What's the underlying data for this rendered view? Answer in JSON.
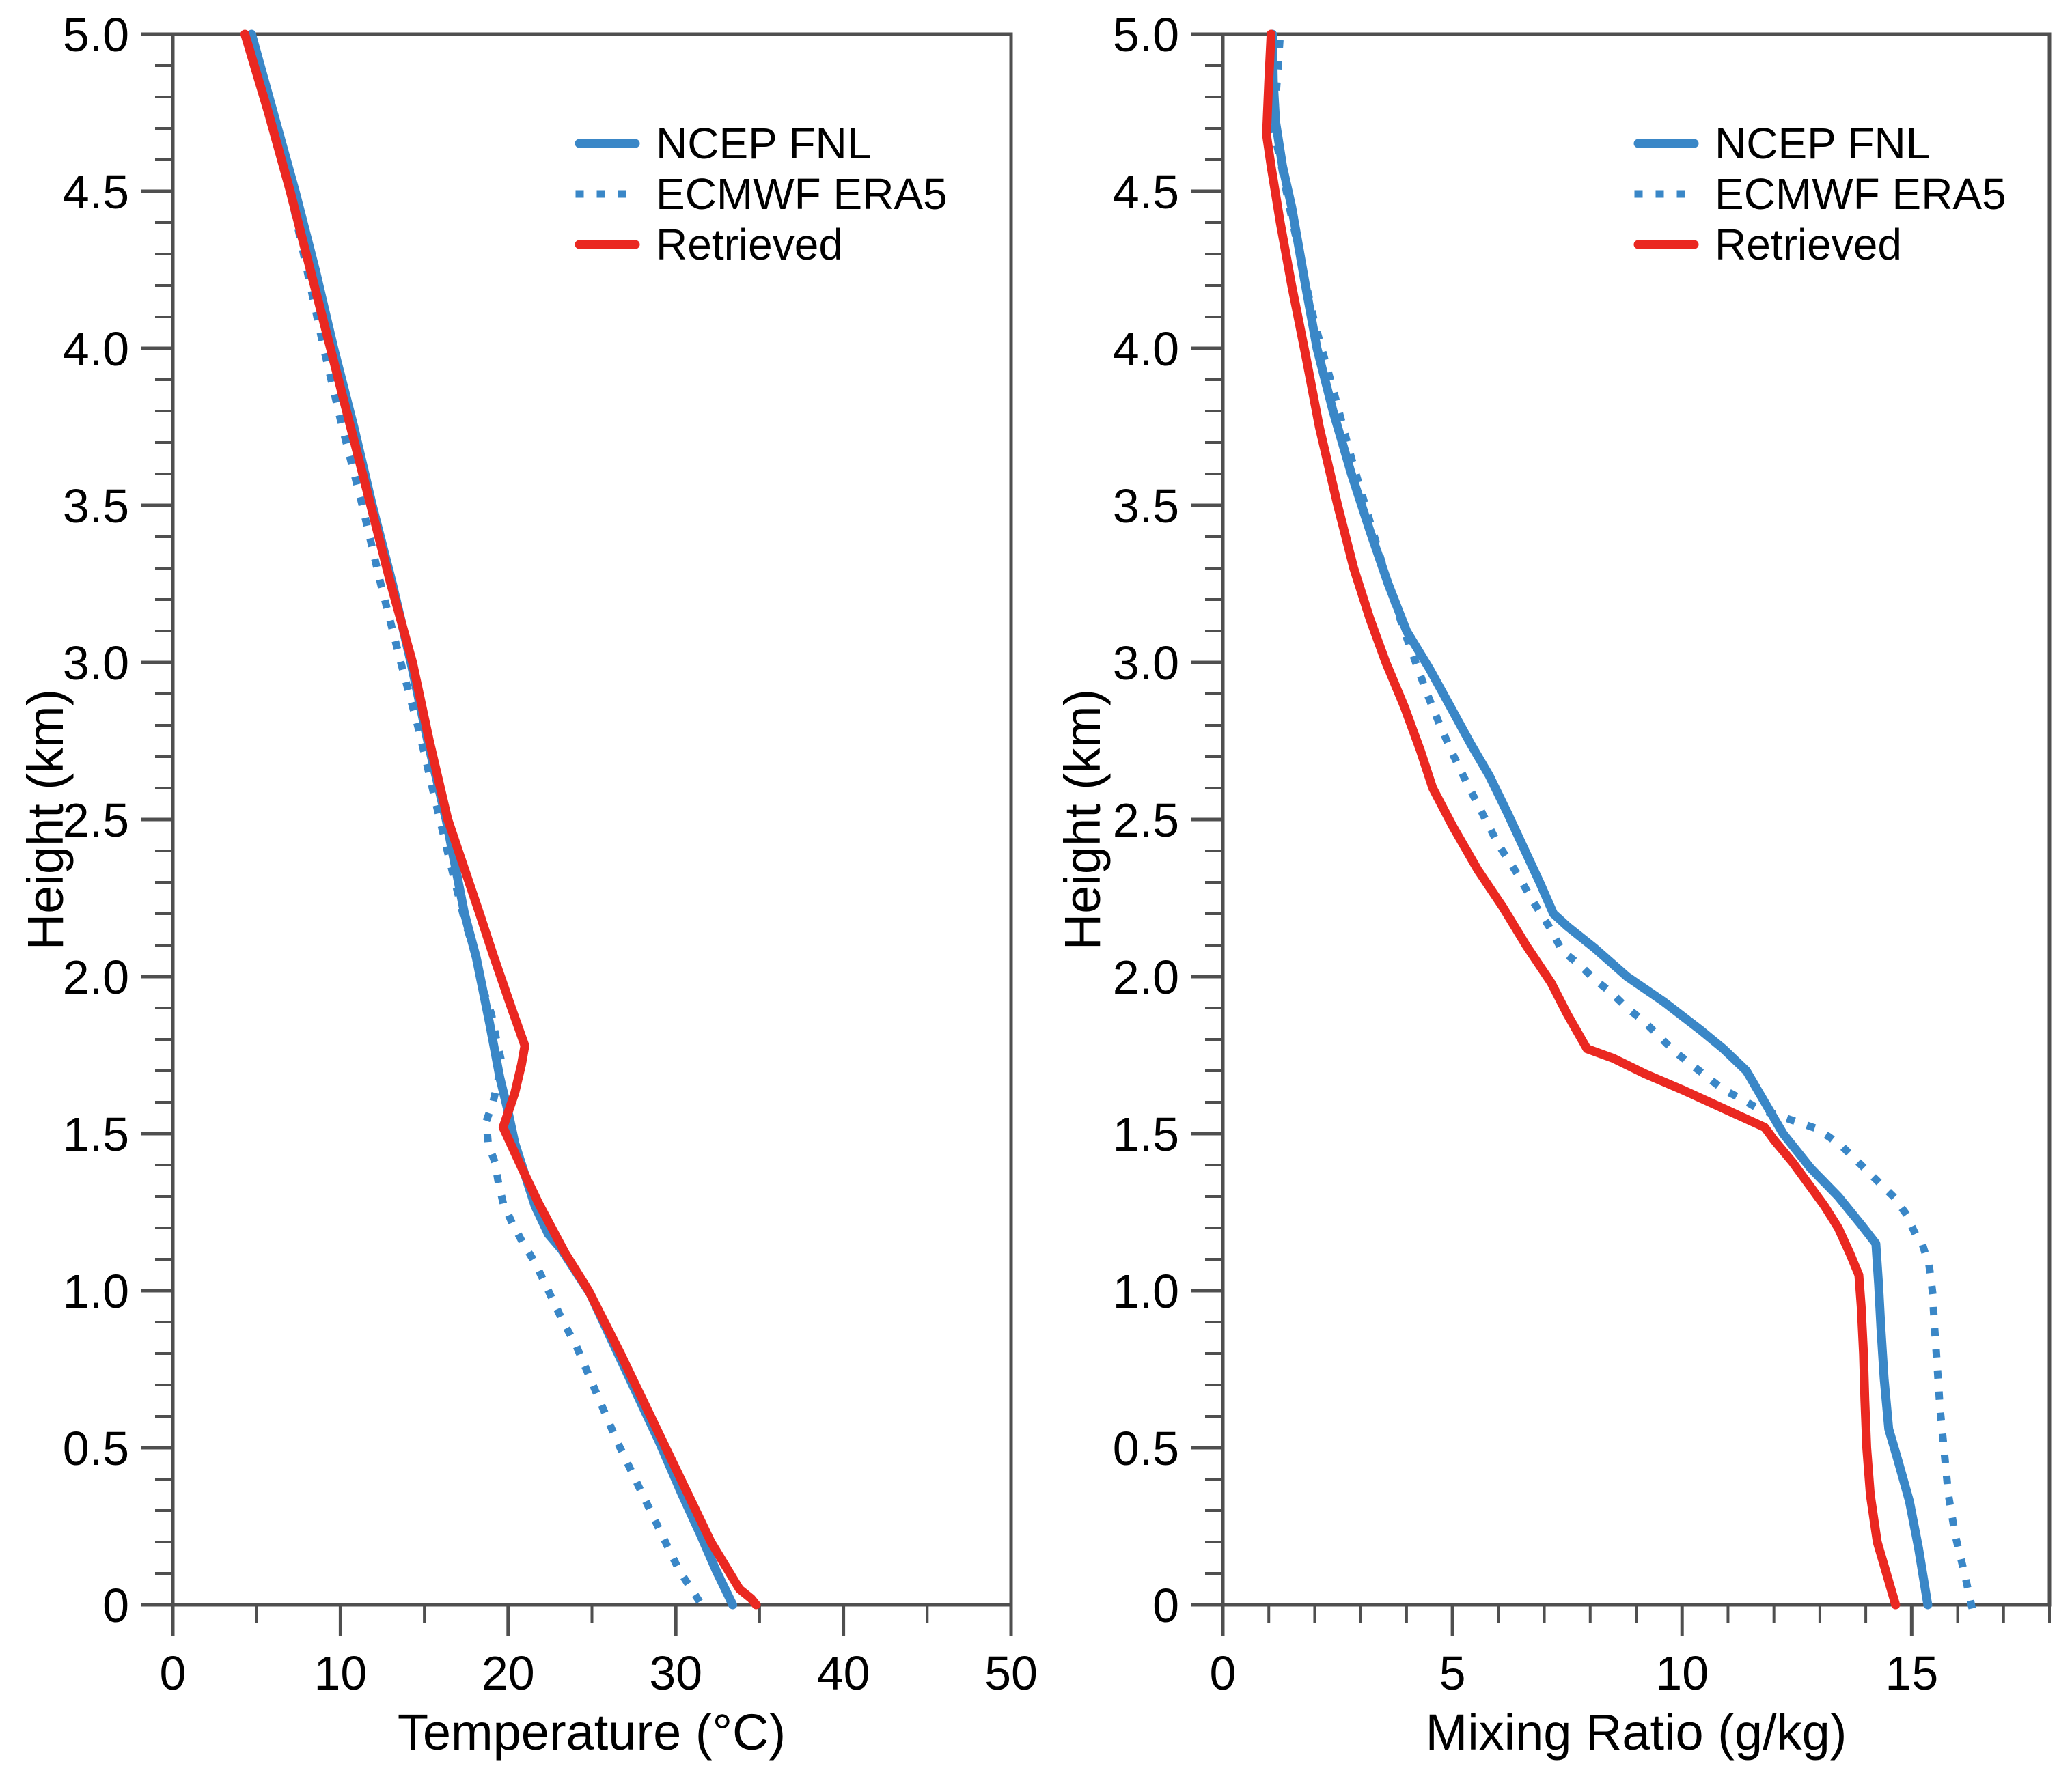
{
  "figure": {
    "background": "#ffffff",
    "axis_color": "#4F4F4F",
    "text_color": "#000000"
  },
  "legend": {
    "items": [
      {
        "label": "NCEP FNL",
        "color": "#3A87C7",
        "line_style": "solid"
      },
      {
        "label": "ECMWF ERA5",
        "color": "#3A87C7",
        "line_style": "dotted"
      },
      {
        "label": "Retrieved",
        "color": "#EA2821",
        "line_style": "solid"
      }
    ]
  },
  "chart_data": [
    {
      "type": "line",
      "title": "",
      "xlabel": "Temperature (°C)",
      "ylabel": "Height (km)",
      "xlim": [
        0,
        50
      ],
      "ylim": [
        0,
        5
      ],
      "grid": "off",
      "legend_position": "upper right",
      "x_major_ticks": [
        0,
        10,
        20,
        30,
        40,
        50
      ],
      "x_tick_labels": [
        "0",
        "10",
        "20",
        "30",
        "40",
        "50"
      ],
      "x_minor_step": 5,
      "y_major_ticks": [
        0,
        0.5,
        1.0,
        1.5,
        2.0,
        2.5,
        3.0,
        3.5,
        4.0,
        4.5,
        5.0
      ],
      "y_tick_labels": [
        "0",
        "0.5",
        "1.0",
        "1.5",
        "2.0",
        "2.5",
        "3.0",
        "3.5",
        "4.0",
        "4.5",
        "5.0"
      ],
      "y_minor_step": 0.1,
      "series": [
        {
          "name": "NCEP FNL",
          "color": "#3A87C7",
          "line_style": "solid",
          "points_format": "[temperature_C, height_km]",
          "points": [
            [
              33.4,
              0
            ],
            [
              32.4,
              0.11
            ],
            [
              31.5,
              0.22
            ],
            [
              30.3,
              0.36
            ],
            [
              29.0,
              0.52
            ],
            [
              27.6,
              0.68
            ],
            [
              26.2,
              0.84
            ],
            [
              24.9,
              0.99
            ],
            [
              23.2,
              1.13
            ],
            [
              22.4,
              1.18
            ],
            [
              21.6,
              1.27
            ],
            [
              21.0,
              1.37
            ],
            [
              20.4,
              1.47
            ],
            [
              20.0,
              1.57
            ],
            [
              19.5,
              1.68
            ],
            [
              18.9,
              1.85
            ],
            [
              18.1,
              2.06
            ],
            [
              17.4,
              2.2
            ],
            [
              16.3,
              2.5
            ],
            [
              15.2,
              2.75
            ],
            [
              14.2,
              3.0
            ],
            [
              13.1,
              3.25
            ],
            [
              11.9,
              3.5
            ],
            [
              10.8,
              3.75
            ],
            [
              9.6,
              4.0
            ],
            [
              8.5,
              4.25
            ],
            [
              7.3,
              4.5
            ],
            [
              6.0,
              4.75
            ],
            [
              4.7,
              5.0
            ]
          ]
        },
        {
          "name": "ECMWF ERA5",
          "color": "#3A87C7",
          "line_style": "dotted",
          "points_format": "[temperature_C, height_km]",
          "points": [
            [
              31.3,
              0.02
            ],
            [
              30.2,
              0.11
            ],
            [
              29.2,
              0.22
            ],
            [
              28.3,
              0.32
            ],
            [
              27.4,
              0.42
            ],
            [
              26.5,
              0.52
            ],
            [
              25.7,
              0.62
            ],
            [
              24.9,
              0.72
            ],
            [
              24.1,
              0.82
            ],
            [
              23.2,
              0.91
            ],
            [
              22.4,
              1.0
            ],
            [
              21.6,
              1.09
            ],
            [
              20.9,
              1.15
            ],
            [
              20.2,
              1.22
            ],
            [
              19.7,
              1.28
            ],
            [
              19.4,
              1.35
            ],
            [
              19.2,
              1.41
            ],
            [
              18.8,
              1.47
            ],
            [
              18.7,
              1.54
            ],
            [
              19.1,
              1.6
            ],
            [
              19.4,
              1.67
            ],
            [
              19.6,
              1.73
            ],
            [
              19.3,
              1.8
            ],
            [
              19.0,
              1.88
            ],
            [
              18.5,
              1.96
            ],
            [
              18.1,
              2.06
            ],
            [
              17.4,
              2.18
            ],
            [
              16.6,
              2.35
            ],
            [
              15.7,
              2.55
            ],
            [
              14.7,
              2.78
            ],
            [
              13.6,
              3.0
            ],
            [
              12.4,
              3.25
            ],
            [
              11.3,
              3.5
            ],
            [
              10.1,
              3.75
            ],
            [
              9.0,
              4.0
            ],
            [
              7.8,
              4.3
            ],
            [
              6.6,
              4.6
            ],
            [
              5.5,
              4.82
            ],
            [
              4.6,
              4.95
            ],
            [
              4.0,
              5.0
            ]
          ]
        },
        {
          "name": "Retrieved",
          "color": "#EA2821",
          "line_style": "solid",
          "points_format": "[temperature_C, height_km]",
          "points": [
            [
              34.8,
              0
            ],
            [
              34.5,
              0.02
            ],
            [
              33.8,
              0.05
            ],
            [
              32.1,
              0.2
            ],
            [
              30.3,
              0.4
            ],
            [
              28.5,
              0.6
            ],
            [
              26.7,
              0.8
            ],
            [
              24.8,
              1.0
            ],
            [
              23.4,
              1.12
            ],
            [
              22.6,
              1.2
            ],
            [
              21.8,
              1.28
            ],
            [
              21.0,
              1.37
            ],
            [
              20.3,
              1.45
            ],
            [
              19.7,
              1.52
            ],
            [
              20.4,
              1.63
            ],
            [
              20.8,
              1.72
            ],
            [
              21.0,
              1.78
            ],
            [
              20.2,
              1.9
            ],
            [
              19.1,
              2.07
            ],
            [
              18.3,
              2.2
            ],
            [
              16.4,
              2.5
            ],
            [
              15.3,
              2.75
            ],
            [
              14.3,
              3.0
            ],
            [
              13.0,
              3.25
            ],
            [
              11.8,
              3.5
            ],
            [
              10.6,
              3.75
            ],
            [
              9.4,
              4.0
            ],
            [
              8.2,
              4.25
            ],
            [
              7.0,
              4.5
            ],
            [
              5.7,
              4.75
            ],
            [
              4.3,
              5.0
            ]
          ]
        }
      ]
    },
    {
      "type": "line",
      "title": "",
      "xlabel": "Mixing Ratio (g/kg)",
      "ylabel": "Height (km)",
      "xlim": [
        0,
        18
      ],
      "ylim": [
        0,
        5
      ],
      "grid": "off",
      "legend_position": "upper right",
      "x_major_ticks": [
        0,
        5,
        10,
        15
      ],
      "x_tick_labels": [
        "0",
        "5",
        "10",
        "15"
      ],
      "x_minor_step": 1,
      "y_major_ticks": [
        0,
        0.5,
        1.0,
        1.5,
        2.0,
        2.5,
        3.0,
        3.5,
        4.0,
        4.5,
        5.0
      ],
      "y_tick_labels": [
        "0",
        "0.5",
        "1.0",
        "1.5",
        "2.0",
        "2.5",
        "3.0",
        "3.5",
        "4.0",
        "4.5",
        "5.0"
      ],
      "y_minor_step": 0.1,
      "series": [
        {
          "name": "NCEP FNL",
          "color": "#3A87C7",
          "line_style": "solid",
          "points_format": "[mixing_ratio_g_per_kg, height_km]",
          "points": [
            [
              15.35,
              0
            ],
            [
              15.15,
              0.18
            ],
            [
              14.95,
              0.33
            ],
            [
              14.7,
              0.46
            ],
            [
              14.5,
              0.56
            ],
            [
              14.4,
              0.72
            ],
            [
              14.33,
              0.88
            ],
            [
              14.28,
              1.02
            ],
            [
              14.22,
              1.15
            ],
            [
              13.9,
              1.21
            ],
            [
              13.4,
              1.3
            ],
            [
              12.8,
              1.39
            ],
            [
              12.2,
              1.5
            ],
            [
              11.8,
              1.6
            ],
            [
              11.4,
              1.7
            ],
            [
              10.9,
              1.77
            ],
            [
              10.4,
              1.83
            ],
            [
              9.6,
              1.92
            ],
            [
              8.8,
              2.0
            ],
            [
              8.1,
              2.09
            ],
            [
              7.5,
              2.16
            ],
            [
              7.2,
              2.2
            ],
            [
              6.9,
              2.3
            ],
            [
              6.55,
              2.41
            ],
            [
              6.2,
              2.52
            ],
            [
              5.8,
              2.64
            ],
            [
              5.4,
              2.74
            ],
            [
              4.95,
              2.86
            ],
            [
              4.5,
              2.98
            ],
            [
              4.0,
              3.1
            ],
            [
              3.6,
              3.25
            ],
            [
              3.2,
              3.42
            ],
            [
              2.8,
              3.6
            ],
            [
              2.4,
              3.8
            ],
            [
              2.05,
              4.0
            ],
            [
              1.8,
              4.2
            ],
            [
              1.5,
              4.45
            ],
            [
              1.3,
              4.58
            ],
            [
              1.15,
              4.72
            ],
            [
              1.1,
              4.85
            ],
            [
              1.08,
              5.0
            ]
          ]
        },
        {
          "name": "ECMWF ERA5",
          "color": "#3A87C7",
          "line_style": "dotted",
          "points_format": "[mixing_ratio_g_per_kg, height_km]",
          "points": [
            [
              16.3,
              0
            ],
            [
              16.15,
              0.1
            ],
            [
              15.95,
              0.22
            ],
            [
              15.8,
              0.35
            ],
            [
              15.7,
              0.5
            ],
            [
              15.62,
              0.62
            ],
            [
              15.56,
              0.75
            ],
            [
              15.5,
              0.88
            ],
            [
              15.45,
              1.0
            ],
            [
              15.38,
              1.08
            ],
            [
              15.25,
              1.14
            ],
            [
              15.05,
              1.19
            ],
            [
              14.85,
              1.25
            ],
            [
              14.6,
              1.3
            ],
            [
              14.25,
              1.35
            ],
            [
              13.9,
              1.4
            ],
            [
              13.55,
              1.45
            ],
            [
              13.2,
              1.49
            ],
            [
              12.85,
              1.52
            ],
            [
              12.45,
              1.54
            ],
            [
              12.05,
              1.56
            ],
            [
              11.65,
              1.58
            ],
            [
              11.3,
              1.61
            ],
            [
              10.9,
              1.64
            ],
            [
              10.55,
              1.68
            ],
            [
              10.2,
              1.72
            ],
            [
              9.85,
              1.76
            ],
            [
              9.5,
              1.81
            ],
            [
              9.15,
              1.86
            ],
            [
              8.8,
              1.9
            ],
            [
              8.45,
              1.95
            ],
            [
              8.1,
              1.99
            ],
            [
              7.75,
              2.04
            ],
            [
              7.4,
              2.08
            ],
            [
              7.1,
              2.16
            ],
            [
              6.75,
              2.24
            ],
            [
              6.4,
              2.33
            ],
            [
              6.0,
              2.42
            ],
            [
              5.65,
              2.52
            ],
            [
              5.3,
              2.62
            ],
            [
              5.0,
              2.71
            ],
            [
              4.7,
              2.81
            ],
            [
              4.45,
              2.9
            ],
            [
              4.2,
              3.0
            ],
            [
              3.95,
              3.1
            ],
            [
              3.6,
              3.25
            ],
            [
              3.2,
              3.45
            ],
            [
              2.8,
              3.65
            ],
            [
              2.4,
              3.87
            ],
            [
              2.0,
              4.08
            ],
            [
              1.7,
              4.28
            ],
            [
              1.45,
              4.45
            ],
            [
              1.25,
              4.6
            ],
            [
              1.1,
              4.7
            ],
            [
              1.18,
              4.85
            ],
            [
              1.25,
              5.0
            ]
          ]
        },
        {
          "name": "Retrieved",
          "color": "#EA2821",
          "line_style": "solid",
          "points_format": "[mixing_ratio_g_per_kg, height_km]",
          "points": [
            [
              14.65,
              0
            ],
            [
              14.45,
              0.1
            ],
            [
              14.25,
              0.2
            ],
            [
              14.1,
              0.35
            ],
            [
              14.02,
              0.5
            ],
            [
              13.98,
              0.65
            ],
            [
              13.95,
              0.8
            ],
            [
              13.9,
              0.95
            ],
            [
              13.85,
              1.05
            ],
            [
              13.65,
              1.12
            ],
            [
              13.4,
              1.2
            ],
            [
              13.1,
              1.27
            ],
            [
              12.75,
              1.34
            ],
            [
              12.4,
              1.41
            ],
            [
              12.0,
              1.48
            ],
            [
              11.8,
              1.52
            ],
            [
              10.9,
              1.58
            ],
            [
              10.0,
              1.64
            ],
            [
              9.2,
              1.69
            ],
            [
              8.5,
              1.74
            ],
            [
              7.93,
              1.77
            ],
            [
              7.5,
              1.88
            ],
            [
              7.15,
              1.98
            ],
            [
              6.6,
              2.1
            ],
            [
              6.1,
              2.22
            ],
            [
              5.55,
              2.34
            ],
            [
              5.0,
              2.48
            ],
            [
              4.57,
              2.6
            ],
            [
              4.3,
              2.72
            ],
            [
              3.95,
              2.86
            ],
            [
              3.55,
              3.0
            ],
            [
              3.2,
              3.14
            ],
            [
              2.85,
              3.3
            ],
            [
              2.5,
              3.5
            ],
            [
              2.1,
              3.75
            ],
            [
              1.8,
              3.98
            ],
            [
              1.5,
              4.2
            ],
            [
              1.25,
              4.4
            ],
            [
              1.05,
              4.58
            ],
            [
              0.95,
              4.68
            ],
            [
              1.0,
              4.85
            ],
            [
              1.05,
              5.0
            ]
          ]
        }
      ]
    }
  ]
}
